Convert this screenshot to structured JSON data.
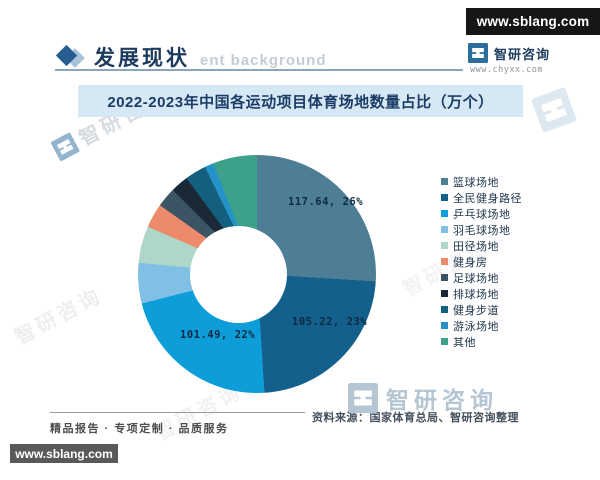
{
  "page": {
    "top_badge": "www.sblang.com",
    "bottom_badge": "www.sblang.com"
  },
  "header": {
    "section_title": "发展现状",
    "ghost_text": "ent background",
    "brand": {
      "name": "智研咨询",
      "url": "www.chyxx.com"
    }
  },
  "chart_data": {
    "type": "pie",
    "variant": "donut",
    "title": "2022-2023年中国各运动项目体育场地数量占比（万个）",
    "unit": "万个",
    "legend_position": "right",
    "slices": [
      {
        "name": "篮球场地",
        "value": 117.64,
        "percent": 26,
        "color": "#4e7e96",
        "label": "117.64, 26%"
      },
      {
        "name": "全民健身路径",
        "value": 105.22,
        "percent": 23,
        "color": "#14608c",
        "label": "105.22, 23%"
      },
      {
        "name": "乒乓球场地",
        "value": 101.49,
        "percent": 22,
        "color": "#0d9dd8",
        "label": "101.49, 22%"
      },
      {
        "name": "羽毛球场地",
        "percent": 5.5,
        "color": "#7fc0e4"
      },
      {
        "name": "田径场地",
        "percent": 5,
        "color": "#aed6cb"
      },
      {
        "name": "健身房",
        "percent": 3.3,
        "color": "#ec8a6b"
      },
      {
        "name": "足球场地",
        "percent": 2.7,
        "color": "#3d5464"
      },
      {
        "name": "排球场地",
        "percent": 2.4,
        "color": "#1b2936"
      },
      {
        "name": "健身步道",
        "percent": 2.9,
        "color": "#135f7e"
      },
      {
        "name": "游泳场地",
        "percent": 1.2,
        "color": "#2592c8"
      },
      {
        "name": "其他",
        "percent": 6,
        "color": "#3da08b"
      }
    ]
  },
  "footer": {
    "tagline": "精品报告 · 专项定制 · 品质服务",
    "source": "资料来源：国家体育总局、智研咨询整理"
  },
  "watermark": {
    "brand": "智研咨询"
  }
}
